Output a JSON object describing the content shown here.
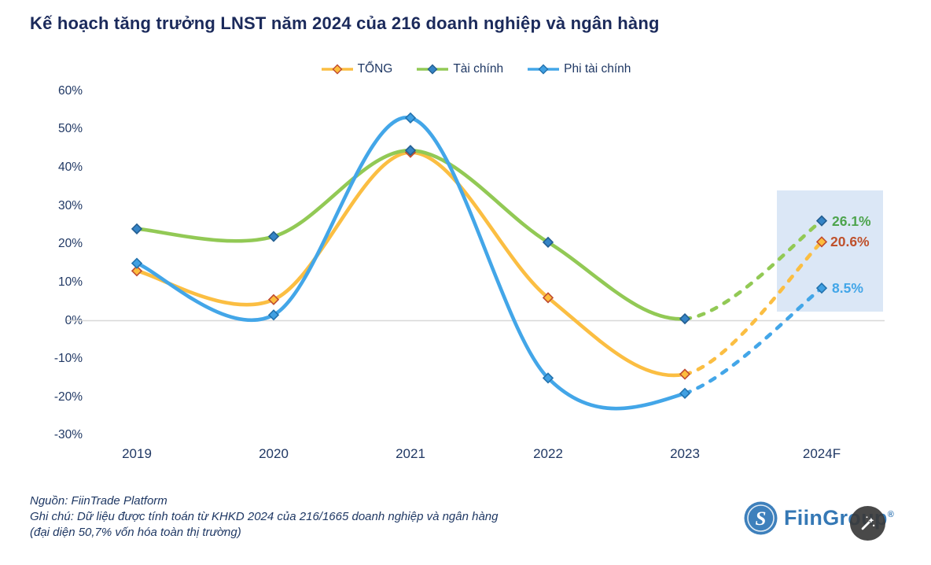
{
  "title": "Kế hoạch tăng trưởng LNST năm 2024 của 216 doanh nghiệp và ngân hàng",
  "chart_data": {
    "type": "line",
    "title": "Kế hoạch tăng trưởng LNST năm 2024 của 216 doanh nghiệp và ngân hàng",
    "categories": [
      "2019",
      "2020",
      "2021",
      "2022",
      "2023",
      "2024F"
    ],
    "ytick_labels": [
      "60%",
      "50%",
      "40%",
      "30%",
      "20%",
      "10%",
      "0%",
      "-10%",
      "-20%",
      "-30%"
    ],
    "ytick_values": [
      60,
      50,
      40,
      30,
      20,
      10,
      0,
      -10,
      -20,
      -30
    ],
    "ylim": [
      -30,
      60
    ],
    "grid": "zero-line-only",
    "legend_position": "top-center",
    "smoothing": "spline",
    "forecast_from_category": "2023",
    "forecast_style": "dashed",
    "highlight_category": "2024F",
    "highlight_box_color": "#dbe7f6",
    "zero_line_color": "#d8d8d8",
    "axis_text_color": "#203864",
    "series": [
      {
        "name": "TỔNG",
        "color": "#fbbe42",
        "marker_fill": "#fdbd3c",
        "marker_stroke": "#bf4b30",
        "label_color": "#bf512c",
        "values": [
          13,
          5.5,
          44,
          6,
          -14,
          20.6
        ],
        "end_label": "20.6%"
      },
      {
        "name": "Tài chính",
        "color": "#92c955",
        "marker_fill": "#3584c6",
        "marker_stroke": "#235e91",
        "label_color": "#4da44d",
        "values": [
          24,
          22,
          44.5,
          20.5,
          0.5,
          26.1
        ],
        "end_label": "26.1%"
      },
      {
        "name": "Phi tài chính",
        "color": "#43a6e8",
        "marker_fill": "#41a0e2",
        "marker_stroke": "#2272ae",
        "label_color": "#43a6e8",
        "values": [
          15,
          1.5,
          53,
          -15,
          -19,
          8.5
        ],
        "end_label": "8.5%"
      }
    ]
  },
  "footer": {
    "source": "Nguồn: FiinTrade Platform",
    "note_line1": "Ghi chú: Dữ liệu được tính toán từ KHKD 2024 của 216/1665 doanh nghiệp và ngân hàng",
    "note_line2": "(đại diện 50,7% vốn hóa toàn thị trường)"
  },
  "brand": {
    "name": "FiinGroup",
    "registered": "®",
    "logo_color": "#3e80bc",
    "logo_glyph": "S"
  }
}
